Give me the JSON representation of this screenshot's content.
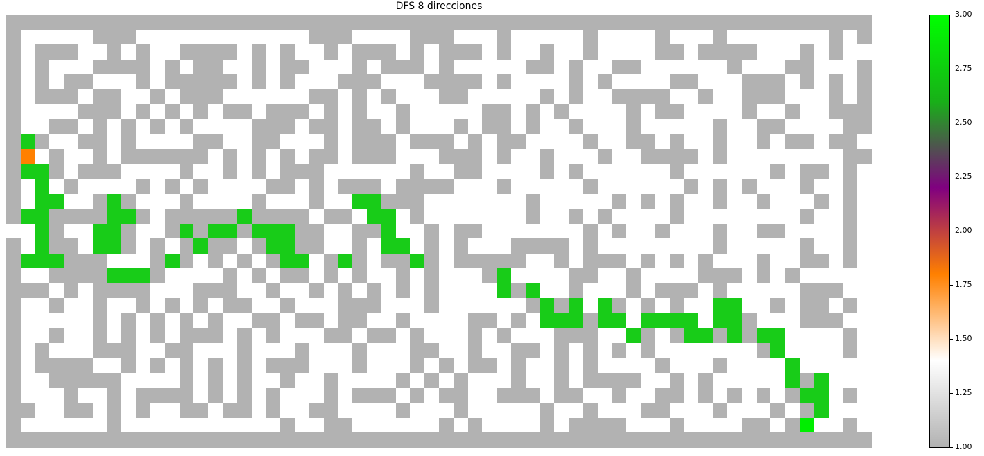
{
  "chart_data": {
    "type": "heatmap",
    "title": "DFS 8 direcciones",
    "xlabel": "",
    "ylabel": "",
    "grid": false,
    "axes": "off",
    "cell_legend": {
      "0": "wall",
      "1": "open",
      "2": "start",
      "3": "path",
      "4": "goal"
    },
    "cell_colors": {
      "wall": "#b2b2b2",
      "open": "#ffffff",
      "start": "#ff8000",
      "path": "#18cc18",
      "goal": "#00ee00"
    },
    "rows": [
      "000000000000000000000000000000000000000000000000000000000000",
      "011111000111111111111000111100011101111101111011101111111010",
      "010001101011000010101101000101000101101101111001000011101011",
      "010111000010100110100111010001011111001011001111110111001110",
      "010100111010000010101110001110000101111010111100111000101010",
      "010001001101000111111001010111001111101011000011011000111010",
      "011110001010101001000101011011111001010111101001111011011000",
      "011001010101011110001001001011101001011011101111101100111100",
      "030110010111100110011101000100010100111101100101101101001001",
      "021011010000001010101001000111000101101110110000101111111100",
      "033010001111011010100011111101100111101011111101111110100101",
      "013101111010101111001010001000011101111101111110101011101101",
      "013311030111011110111011330001111111011111010101101101110101",
      "033000033010000030000100133101111111011010111101111111101101",
      "113011330110303303330011003110100111111101011011101100111101",
      "013001330101030010330011013310101110000101111111101111101101",
      "033300011103010101033103010030100000110100010101011101100101",
      "011000033301111010100101011010111031111001101111000101011111",
      "000101000011100011011010101010111130311011101000101111100011",
      "011011011010101001101110001110111111030313010101133110100101",
      "011111010101010110010010011011110010133303313333133011100011",
      "011011010101000101011100100101110101110001130103303033111101",
      "010111000110011101110111011100110110010101010111111103111101",
      "010000110101010101000111011101010010110101111011101111311111",
      "011000001111010101101101111010101110110100001101011111303111",
      "011101101000010101011101000101001100010011011001010101033101",
      "001100101011001001011001111011101111101101110011101110103111",
      "011111101111111111101100111111010111101000011101111001041101",
      "000000000000000000000000000000000000000000000000000000000000"
    ],
    "colorbar": {
      "range": [
        1.0,
        3.0
      ],
      "ticks": [
        "1.00",
        "1.25",
        "1.50",
        "1.75",
        "2.00",
        "2.25",
        "2.50",
        "2.75",
        "3.00"
      ],
      "colors": [
        "#b2b2b2",
        "#ffffff",
        "#ff8000",
        "#800080",
        "#18b018",
        "#00ff00"
      ]
    }
  }
}
